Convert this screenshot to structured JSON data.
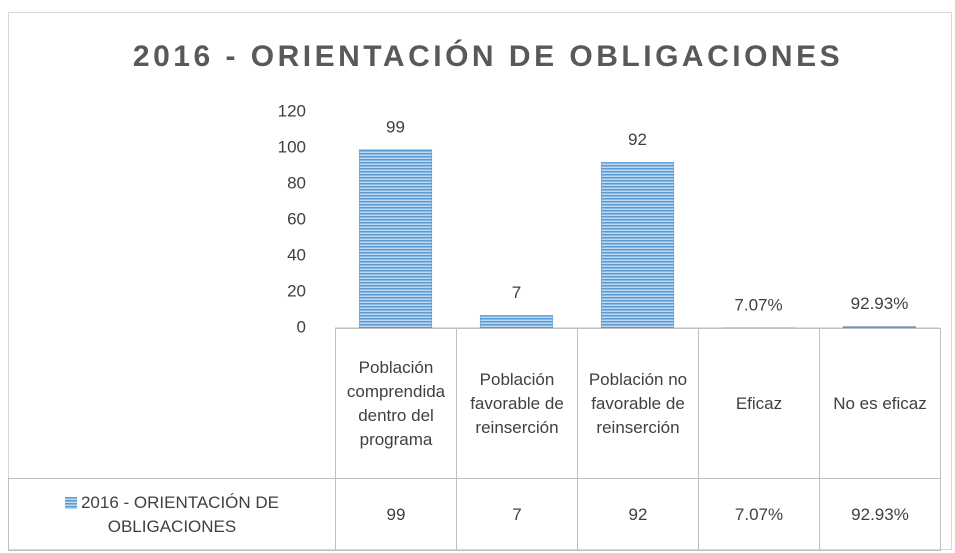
{
  "chart_data": {
    "type": "bar",
    "title": "2016 - ORIENTACIÓN DE OBLIGACIONES",
    "categories": [
      "Población comprendida dentro del programa",
      "Población favorable de reinserción",
      "Población no favorable de reinserción",
      "Eficaz",
      "No es eficaz"
    ],
    "series": [
      {
        "name": "2016 - ORIENTACIÓN DE OBLIGACIONES",
        "color": "#5b9bd5",
        "values": [
          99,
          7,
          92,
          0.0707,
          0.9293
        ],
        "value_labels": [
          "99",
          "7",
          "92",
          "7.07%",
          "92.93%"
        ]
      }
    ],
    "ylim": [
      0,
      120
    ],
    "yticks": [
      0,
      20,
      40,
      60,
      80,
      100,
      120
    ],
    "grid": false,
    "data_table": true
  }
}
